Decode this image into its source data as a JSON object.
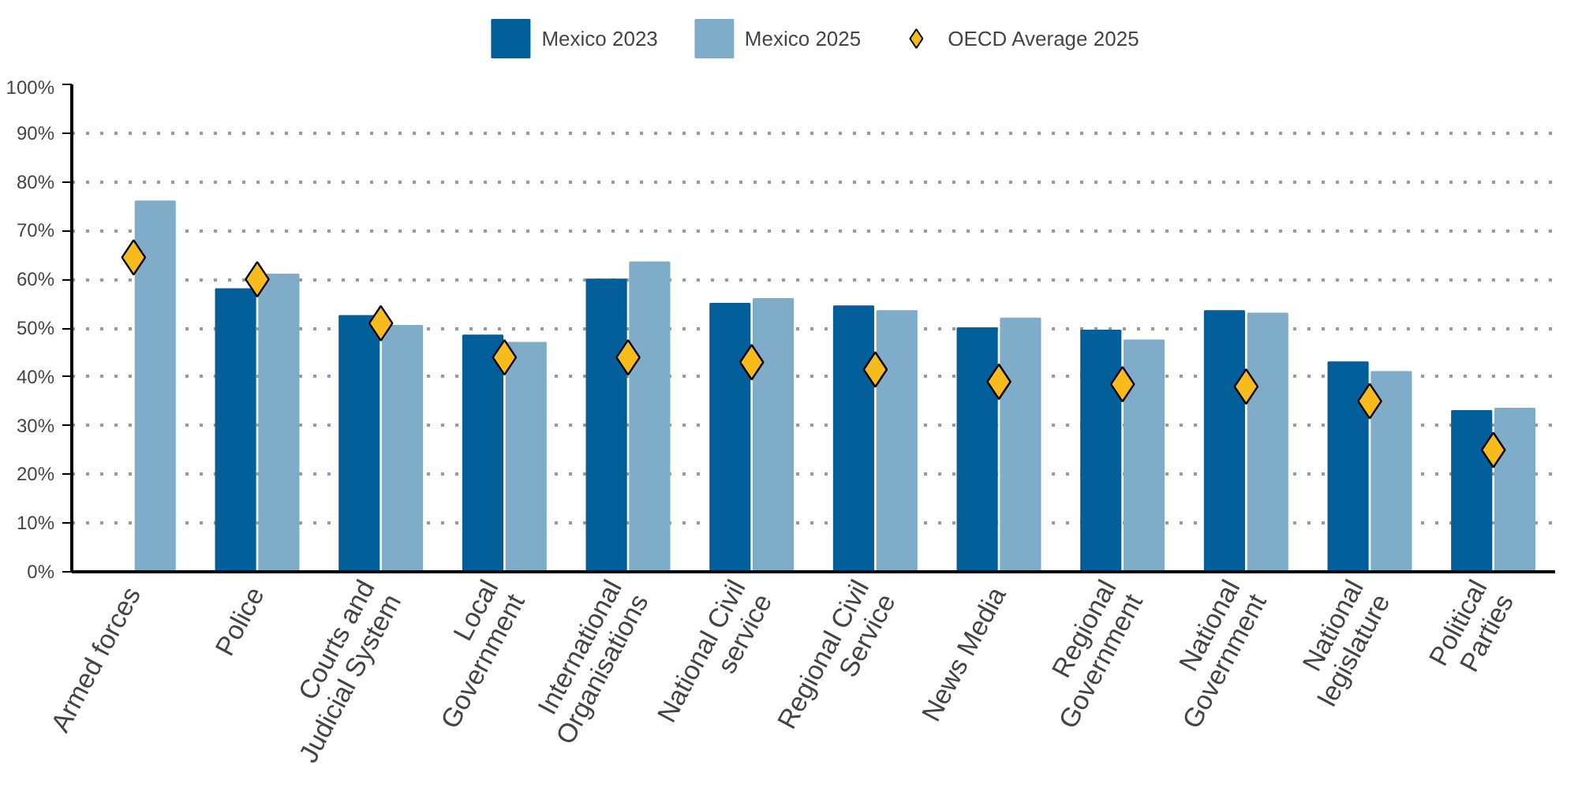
{
  "chart_data": {
    "type": "bar",
    "categories": [
      "Armed forces",
      "Police",
      "Courts and\nJudicial System",
      "Local\nGovernment",
      "International\nOrganisations",
      "National Civil\nservice",
      "Regional Civil\nService",
      "News Media",
      "Regional\nGovernment",
      "National\nGovernment",
      "National\nlegislature",
      "Political\nParties"
    ],
    "series": [
      {
        "name": "Mexico 2023",
        "color": "#025f99",
        "values": [
          null,
          58,
          52.5,
          48.5,
          60,
          55,
          54.5,
          50,
          49.5,
          53.5,
          43,
          33
        ]
      },
      {
        "name": "Mexico 2025",
        "color": "#7eacc9",
        "values": [
          76,
          61,
          50.5,
          47,
          63.5,
          56,
          53.5,
          52,
          47.5,
          53,
          41,
          33.5
        ]
      },
      {
        "name": "OECD Average 2025",
        "type": "scatter",
        "color": "#f7bc1c",
        "values": [
          64.5,
          60,
          51,
          44,
          44,
          43,
          41.5,
          39,
          38.5,
          38,
          35,
          25
        ]
      }
    ],
    "ylim": [
      0,
      100
    ],
    "yticks": [
      {
        "value": 0,
        "label": "0%"
      },
      {
        "value": 10,
        "label": "10%"
      },
      {
        "value": 20,
        "label": "20%"
      },
      {
        "value": 30,
        "label": "30%"
      },
      {
        "value": 40,
        "label": "40%"
      },
      {
        "value": 50,
        "label": "50%"
      },
      {
        "value": 60,
        "label": "60%"
      },
      {
        "value": 70,
        "label": "70%"
      },
      {
        "value": 80,
        "label": "80%"
      },
      {
        "value": 90,
        "label": "90%"
      },
      {
        "value": 100,
        "label": "100%"
      }
    ],
    "grid": "y",
    "legend": "top",
    "marker": "diamond"
  }
}
